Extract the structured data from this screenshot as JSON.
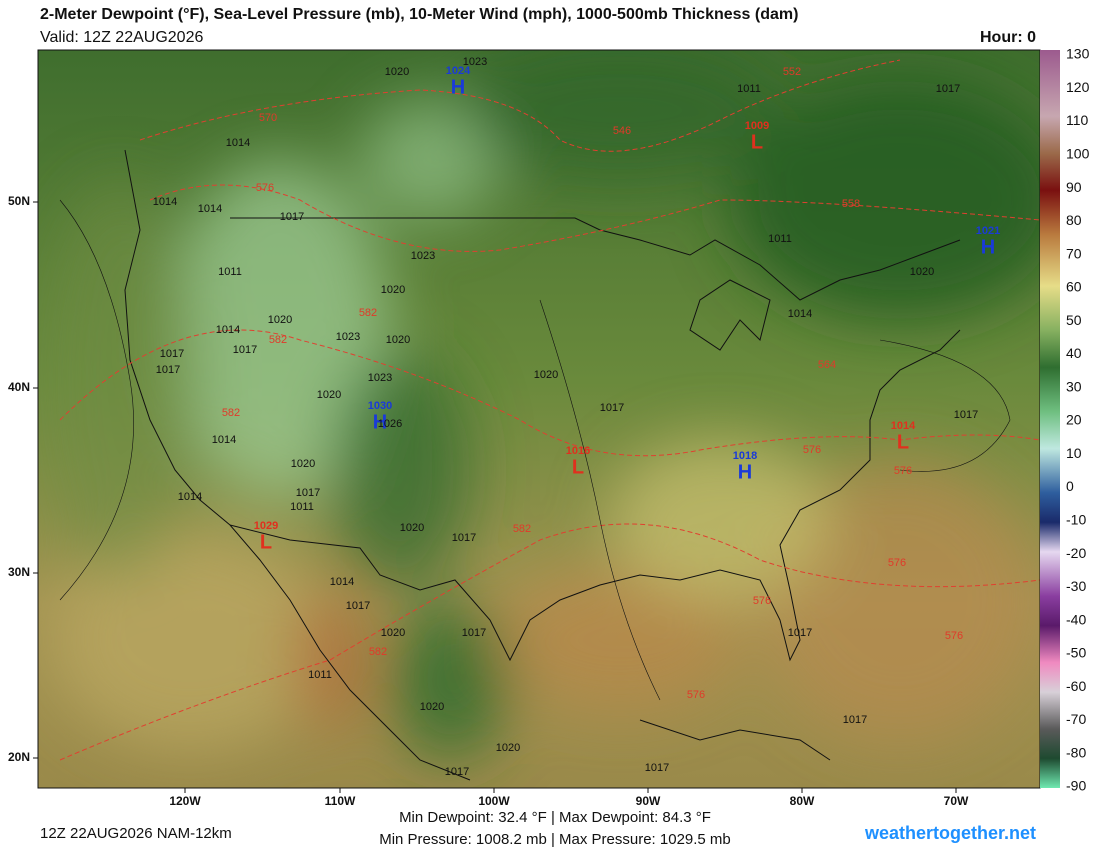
{
  "header": {
    "title": "2-Meter Dewpoint (°F), Sea-Level Pressure (mb), 10-Meter Wind (mph), 1000-500mb Thickness (dam)",
    "valid": "Valid: 12Z 22AUG2026",
    "hour": "Hour: 0"
  },
  "colorbar": {
    "ticks": [
      130,
      120,
      110,
      100,
      90,
      80,
      70,
      60,
      50,
      40,
      30,
      20,
      10,
      0,
      -10,
      -20,
      -30,
      -40,
      -50,
      -60,
      -70,
      -80,
      -90
    ]
  },
  "map": {
    "lat_labels": [
      "50N",
      "40N",
      "30N",
      "20N"
    ],
    "lon_labels": [
      "120W",
      "110W",
      "100W",
      "90W",
      "80W",
      "70W"
    ],
    "pressure_centers": [
      {
        "letter": "H",
        "value": 1024
      },
      {
        "letter": "L",
        "value": 1009
      },
      {
        "letter": "H",
        "value": 1021
      },
      {
        "letter": "H",
        "value": 1030
      },
      {
        "letter": "L",
        "value": 1016
      },
      {
        "letter": "H",
        "value": 1018
      },
      {
        "letter": "L",
        "value": 1014
      },
      {
        "letter": "L",
        "value": 1029
      }
    ],
    "isobar_labels": [
      1020,
      1023,
      1011,
      1017,
      1014,
      1014,
      1014,
      1017,
      1023,
      1011,
      1020,
      1011,
      1020,
      1014,
      1020,
      1017,
      1017,
      1023,
      1020,
      1017,
      1014,
      1023,
      1020,
      1020,
      1017,
      1017,
      1014,
      1026,
      1020,
      1017,
      1011,
      1014,
      1020,
      1017,
      1014,
      1017,
      1020,
      1017,
      1017,
      1011,
      1020,
      1017,
      1020,
      1017,
      1017
    ],
    "thickness_labels": [
      570,
      576,
      546,
      552,
      558,
      582,
      582,
      582,
      564,
      576,
      576,
      582,
      576,
      576,
      576,
      582,
      576
    ]
  },
  "footer": {
    "run": "12Z 22AUG2026 NAM-12km",
    "dewpoint": "Min Dewpoint:  32.4 °F | Max Dewpoint:  84.3 °F",
    "pressure": "Min Pressure: 1008.2 mb | Max Pressure: 1029.5 mb",
    "site": "weathertogether.net"
  }
}
